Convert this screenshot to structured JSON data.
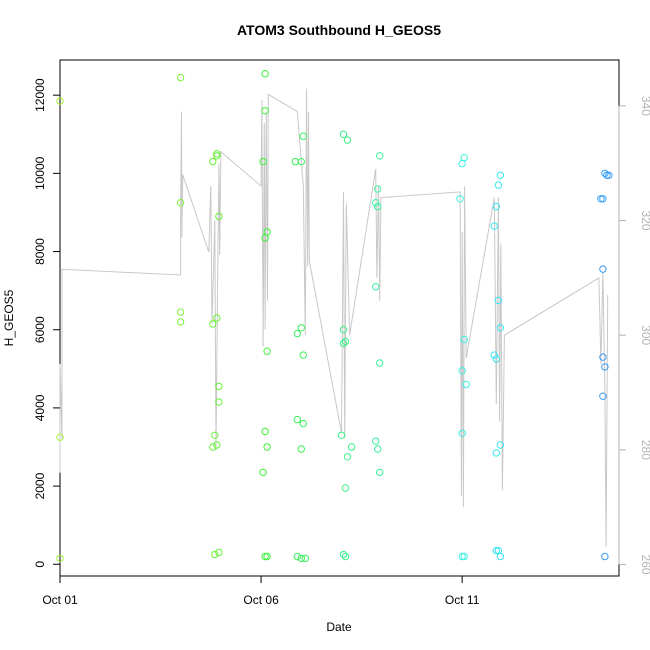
{
  "chart_data": {
    "type": "scatter",
    "title": "ATOM3 Southbound H_GEOS5",
    "xlabel": "Date",
    "ylabel": "H_GEOS5",
    "x_ticks": [
      "Oct 01",
      "Oct 06",
      "Oct 11"
    ],
    "xlim_days": [
      0.0,
      13.9
    ],
    "ylim": [
      -300,
      12900
    ],
    "y_ticks": [
      0,
      2000,
      4000,
      6000,
      8000,
      10000,
      12000
    ],
    "y2_ticks": [
      260,
      280,
      300,
      320,
      340
    ],
    "y2lim": [
      258,
      348
    ],
    "grid": false,
    "legend": "none",
    "colors": {
      "secondary_line": "#c8c8c8",
      "right_axis": "#b3b3b3",
      "frame": "#000000"
    },
    "points": [
      {
        "x": 0.0,
        "y": 11850,
        "c": "#a6f23a"
      },
      {
        "x": 0.0,
        "y": 3250,
        "c": "#a6f23a"
      },
      {
        "x": 0.0,
        "y": 150,
        "c": "#a6f23a"
      },
      {
        "x": 3.0,
        "y": 12450,
        "c": "#7ef23a"
      },
      {
        "x": 3.0,
        "y": 9250,
        "c": "#7ef23a"
      },
      {
        "x": 3.0,
        "y": 6450,
        "c": "#7ef23a"
      },
      {
        "x": 3.0,
        "y": 6200,
        "c": "#7ef23a"
      },
      {
        "x": 3.8,
        "y": 10300,
        "c": "#6af23a"
      },
      {
        "x": 3.9,
        "y": 10450,
        "c": "#6af23a"
      },
      {
        "x": 3.9,
        "y": 10500,
        "c": "#6af23a"
      },
      {
        "x": 3.95,
        "y": 8900,
        "c": "#6af23a"
      },
      {
        "x": 3.8,
        "y": 6150,
        "c": "#6af23a"
      },
      {
        "x": 3.9,
        "y": 6300,
        "c": "#6af23a"
      },
      {
        "x": 3.95,
        "y": 4550,
        "c": "#6af23a"
      },
      {
        "x": 3.95,
        "y": 4150,
        "c": "#6af23a"
      },
      {
        "x": 3.85,
        "y": 3300,
        "c": "#6af23a"
      },
      {
        "x": 3.8,
        "y": 3000,
        "c": "#6af23a"
      },
      {
        "x": 3.9,
        "y": 3050,
        "c": "#6af23a"
      },
      {
        "x": 3.85,
        "y": 250,
        "c": "#6af23a"
      },
      {
        "x": 3.95,
        "y": 300,
        "c": "#6af23a"
      },
      {
        "x": 5.1,
        "y": 12550,
        "c": "#3ef23a"
      },
      {
        "x": 5.1,
        "y": 11600,
        "c": "#3ef23a"
      },
      {
        "x": 5.05,
        "y": 10300,
        "c": "#3ef23a"
      },
      {
        "x": 5.15,
        "y": 8500,
        "c": "#3ef23a"
      },
      {
        "x": 5.1,
        "y": 8350,
        "c": "#3ef23a"
      },
      {
        "x": 5.15,
        "y": 5450,
        "c": "#3ef23a"
      },
      {
        "x": 5.1,
        "y": 3400,
        "c": "#3ef23a"
      },
      {
        "x": 5.15,
        "y": 3000,
        "c": "#3ef23a"
      },
      {
        "x": 5.05,
        "y": 2350,
        "c": "#3ef23a"
      },
      {
        "x": 5.1,
        "y": 200,
        "c": "#3ef23a"
      },
      {
        "x": 5.15,
        "y": 200,
        "c": "#3ef23a"
      },
      {
        "x": 5.85,
        "y": 10300,
        "c": "#3af25a"
      },
      {
        "x": 6.0,
        "y": 10300,
        "c": "#3af25a"
      },
      {
        "x": 6.05,
        "y": 10950,
        "c": "#3af25a"
      },
      {
        "x": 5.9,
        "y": 5900,
        "c": "#3af25a"
      },
      {
        "x": 6.0,
        "y": 6050,
        "c": "#3af25a"
      },
      {
        "x": 6.05,
        "y": 5350,
        "c": "#3af25a"
      },
      {
        "x": 5.9,
        "y": 3700,
        "c": "#3af25a"
      },
      {
        "x": 6.05,
        "y": 3600,
        "c": "#3af25a"
      },
      {
        "x": 6.0,
        "y": 2950,
        "c": "#3af25a"
      },
      {
        "x": 5.9,
        "y": 200,
        "c": "#3af25a"
      },
      {
        "x": 6.0,
        "y": 150,
        "c": "#3af25a"
      },
      {
        "x": 6.1,
        "y": 150,
        "c": "#3af25a"
      },
      {
        "x": 7.05,
        "y": 11000,
        "c": "#3af28a"
      },
      {
        "x": 7.15,
        "y": 10850,
        "c": "#3af28a"
      },
      {
        "x": 7.05,
        "y": 6000,
        "c": "#3af28a"
      },
      {
        "x": 7.1,
        "y": 5700,
        "c": "#3af28a"
      },
      {
        "x": 7.05,
        "y": 5650,
        "c": "#3af28a"
      },
      {
        "x": 7.0,
        "y": 3300,
        "c": "#3af28a"
      },
      {
        "x": 7.25,
        "y": 3000,
        "c": "#3af28a"
      },
      {
        "x": 7.15,
        "y": 2750,
        "c": "#3af28a"
      },
      {
        "x": 7.1,
        "y": 1950,
        "c": "#3af28a"
      },
      {
        "x": 7.05,
        "y": 250,
        "c": "#3af28a"
      },
      {
        "x": 7.1,
        "y": 200,
        "c": "#3af28a"
      },
      {
        "x": 7.95,
        "y": 10450,
        "c": "#3af29e"
      },
      {
        "x": 7.9,
        "y": 9600,
        "c": "#3af29e"
      },
      {
        "x": 7.85,
        "y": 9250,
        "c": "#3af29e"
      },
      {
        "x": 7.9,
        "y": 9150,
        "c": "#3af29e"
      },
      {
        "x": 7.85,
        "y": 7100,
        "c": "#3af29e"
      },
      {
        "x": 7.95,
        "y": 5150,
        "c": "#3af29e"
      },
      {
        "x": 7.85,
        "y": 3150,
        "c": "#3af29e"
      },
      {
        "x": 7.9,
        "y": 2950,
        "c": "#3af29e"
      },
      {
        "x": 7.95,
        "y": 2350,
        "c": "#3af29e"
      },
      {
        "x": 10.05,
        "y": 10400,
        "c": "#3af2e2"
      },
      {
        "x": 10.0,
        "y": 10250,
        "c": "#3af2e2"
      },
      {
        "x": 9.95,
        "y": 9350,
        "c": "#3af2e2"
      },
      {
        "x": 10.05,
        "y": 5750,
        "c": "#3af2e2"
      },
      {
        "x": 10.0,
        "y": 4950,
        "c": "#3af2e2"
      },
      {
        "x": 10.1,
        "y": 4600,
        "c": "#3af2e2"
      },
      {
        "x": 10.0,
        "y": 3350,
        "c": "#3af2e2"
      },
      {
        "x": 10.0,
        "y": 200,
        "c": "#3af2e2"
      },
      {
        "x": 10.05,
        "y": 200,
        "c": "#3af2e2"
      },
      {
        "x": 10.95,
        "y": 9950,
        "c": "#3ae6f2"
      },
      {
        "x": 10.9,
        "y": 9700,
        "c": "#3ae6f2"
      },
      {
        "x": 10.85,
        "y": 9150,
        "c": "#3ae6f2"
      },
      {
        "x": 10.8,
        "y": 8650,
        "c": "#3ae6f2"
      },
      {
        "x": 10.9,
        "y": 6750,
        "c": "#3ae6f2"
      },
      {
        "x": 10.95,
        "y": 6050,
        "c": "#3ae6f2"
      },
      {
        "x": 10.8,
        "y": 5350,
        "c": "#3ae6f2"
      },
      {
        "x": 10.85,
        "y": 5250,
        "c": "#3ae6f2"
      },
      {
        "x": 10.95,
        "y": 3050,
        "c": "#3ae6f2"
      },
      {
        "x": 10.85,
        "y": 2850,
        "c": "#3ae6f2"
      },
      {
        "x": 10.85,
        "y": 350,
        "c": "#3ae6f2"
      },
      {
        "x": 10.9,
        "y": 350,
        "c": "#3ae6f2"
      },
      {
        "x": 10.95,
        "y": 200,
        "c": "#3ae6f2"
      },
      {
        "x": 13.55,
        "y": 10000,
        "c": "#3a9ef2"
      },
      {
        "x": 13.6,
        "y": 9950,
        "c": "#3a9ef2"
      },
      {
        "x": 13.65,
        "y": 9950,
        "c": "#3a9ef2"
      },
      {
        "x": 13.45,
        "y": 9350,
        "c": "#3a9ef2"
      },
      {
        "x": 13.5,
        "y": 9350,
        "c": "#3a9ef2"
      },
      {
        "x": 13.5,
        "y": 7550,
        "c": "#3a9ef2"
      },
      {
        "x": 13.5,
        "y": 5300,
        "c": "#3a9ef2"
      },
      {
        "x": 13.55,
        "y": 5050,
        "c": "#3a9ef2"
      },
      {
        "x": 13.5,
        "y": 4300,
        "c": "#3a9ef2"
      },
      {
        "x": 13.55,
        "y": 200,
        "c": "#3a9ef2"
      }
    ],
    "secondary_series": {
      "name": "",
      "axis": "right",
      "values": [
        [
          0.0,
          276
        ],
        [
          0.0,
          295
        ],
        [
          0.05,
          282
        ],
        [
          0.05,
          311.5
        ],
        [
          3.0,
          310.5
        ],
        [
          3.0,
          321
        ],
        [
          3.02,
          339
        ],
        [
          3.03,
          317
        ],
        [
          3.05,
          328
        ],
        [
          3.7,
          314.5
        ],
        [
          3.75,
          326
        ],
        [
          3.78,
          302
        ],
        [
          3.85,
          320
        ],
        [
          3.88,
          280
        ],
        [
          3.92,
          309
        ],
        [
          3.95,
          330
        ],
        [
          3.97,
          314
        ],
        [
          4.0,
          332
        ],
        [
          5.0,
          326
        ],
        [
          5.02,
          341
        ],
        [
          5.05,
          298
        ],
        [
          5.08,
          337
        ],
        [
          5.1,
          301
        ],
        [
          5.13,
          339
        ],
        [
          5.16,
          306
        ],
        [
          5.18,
          342
        ],
        [
          5.9,
          339
        ],
        [
          6.05,
          326
        ],
        [
          6.1,
          300
        ],
        [
          6.13,
          343
        ],
        [
          6.16,
          312
        ],
        [
          6.18,
          339
        ],
        [
          6.2,
          313
        ],
        [
          7.0,
          283
        ],
        [
          7.05,
          325
        ],
        [
          7.08,
          282
        ],
        [
          7.12,
          323
        ],
        [
          7.2,
          300
        ],
        [
          7.85,
          329
        ],
        [
          7.88,
          310
        ],
        [
          7.92,
          326
        ],
        [
          7.95,
          306
        ],
        [
          7.98,
          324
        ],
        [
          9.95,
          325
        ],
        [
          9.98,
          272
        ],
        [
          10.0,
          318
        ],
        [
          10.03,
          270
        ],
        [
          10.06,
          326
        ],
        [
          10.1,
          296
        ],
        [
          10.8,
          324
        ],
        [
          10.85,
          288
        ],
        [
          10.9,
          324
        ],
        [
          10.93,
          285
        ],
        [
          10.96,
          316
        ],
        [
          11.0,
          273
        ],
        [
          11.05,
          300
        ],
        [
          13.4,
          310
        ],
        [
          13.45,
          295
        ],
        [
          13.5,
          311
        ],
        [
          13.55,
          290
        ],
        [
          13.58,
          263
        ],
        [
          13.62,
          307
        ]
      ]
    }
  }
}
